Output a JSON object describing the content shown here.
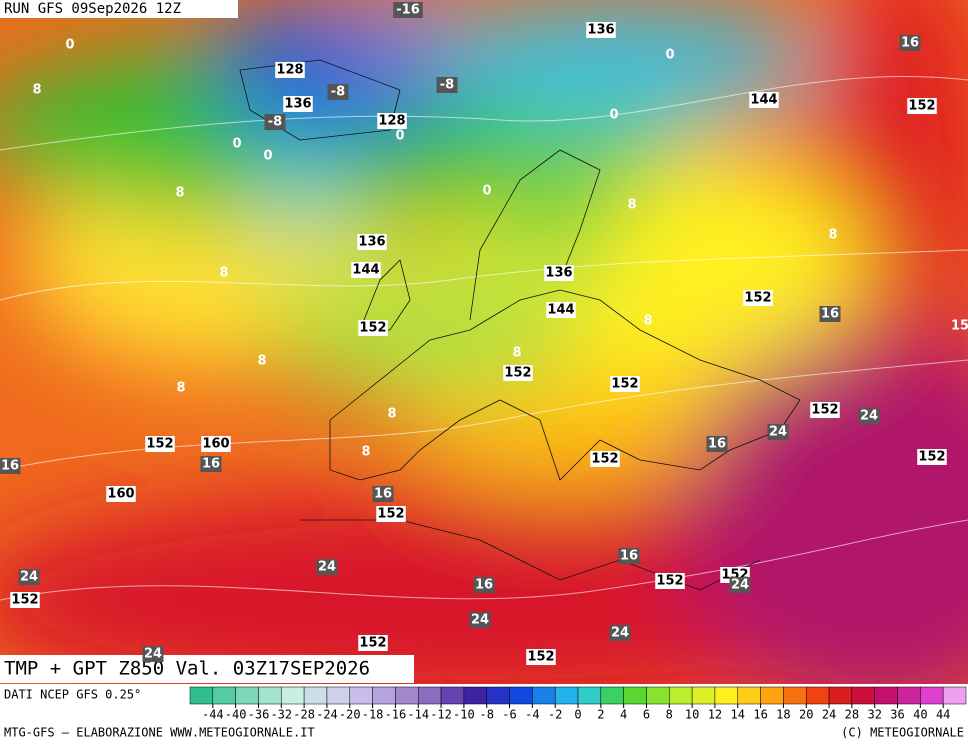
{
  "header": {
    "run": "RUN GFS 09Sep2026 12Z"
  },
  "map": {
    "geopotential_labels": [
      "136",
      "128",
      "144",
      "136",
      "152",
      "128",
      "136",
      "144",
      "136",
      "152",
      "144",
      "152",
      "152",
      "152",
      "152",
      "152",
      "160",
      "152",
      "152",
      "160",
      "152",
      "152",
      "152",
      "152",
      "152",
      "152"
    ],
    "temperature_labels": [
      "-16",
      "16",
      "-8",
      "-8",
      "-8",
      "16",
      "24",
      "24",
      "16",
      "16",
      "16",
      "16",
      "16",
      "24",
      "24",
      "24",
      "24",
      "16",
      "24",
      "24"
    ],
    "isotherm_labels": [
      "0",
      "0",
      "8",
      "0",
      "0",
      "0",
      "0",
      "0",
      "8",
      "8",
      "8",
      "8",
      "15",
      "8",
      "8",
      "8",
      "8",
      "8",
      "8"
    ]
  },
  "footer": {
    "title": "TMP + GPT Z850 Val. 03Z17SEP2026",
    "source": "DATI NCEP GFS 0.25°",
    "credit": "MTG-GFS — ELABORAZIONE WWW.METEOGIORNALE.IT",
    "copyright": "(C) METEOGIORNALE"
  },
  "colorbar": {
    "ticks": [
      -44,
      -40,
      -36,
      -32,
      -28,
      -24,
      -20,
      -18,
      -16,
      -14,
      -12,
      -10,
      -8,
      -6,
      -4,
      -2,
      0,
      2,
      4,
      6,
      8,
      10,
      12,
      14,
      16,
      18,
      20,
      24,
      28,
      32,
      36,
      40,
      44
    ]
  }
}
